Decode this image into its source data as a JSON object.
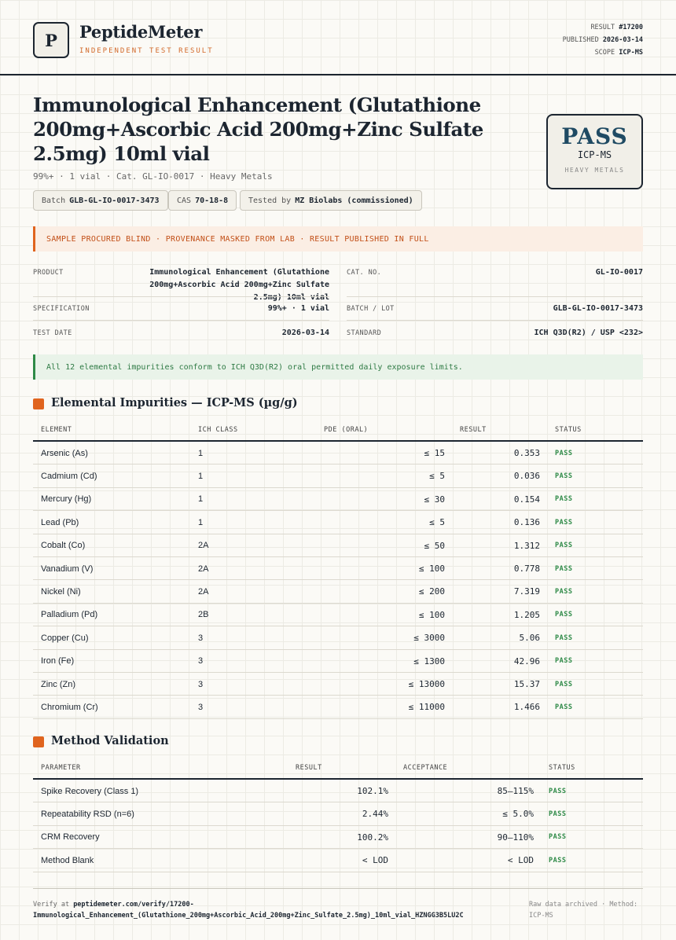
{
  "header": {
    "logo_letter": "P",
    "brand": "PeptideMeter",
    "tagline": "INDEPENDENT TEST RESULT",
    "result_label": "RESULT",
    "result_value": "#17200",
    "published_label": "PUBLISHED",
    "published_value": "2026-03-14",
    "scope_label": "SCOPE",
    "scope_value": "ICP-MS"
  },
  "title": "Immunological Enhancement (Glutathione 200mg+Ascorbic Acid 200mg+Zinc Sulfate 2.5mg) 10ml vial",
  "subtitle": "99%+ · 1 vial · Cat. GL-IO-0017 · Heavy Metals",
  "chips": [
    {
      "label": "Batch",
      "value": "GLB-GL-IO-0017-3473"
    },
    {
      "label": "CAS",
      "value": "70-18-8"
    },
    {
      "label": "Tested by",
      "value": "MZ Biolabs (commissioned)"
    }
  ],
  "stamp": {
    "verdict": "PASS",
    "method": "ICP-MS",
    "category": "HEAVY METALS",
    "color": "#1f4a63"
  },
  "notice": "SAMPLE PROCURED BLIND · PROVENANCE MASKED FROM LAB · RESULT PUBLISHED IN FULL",
  "info": {
    "product_label": "PRODUCT",
    "product_value": "Immunological Enhancement (Glutathione 200mg+Ascorbic Acid 200mg+Zinc Sulfate 2.5mg) 10ml vial",
    "catno_label": "CAT. NO.",
    "catno_value": "GL-IO-0017",
    "spec_label": "SPECIFICATION",
    "spec_value": "99%+ · 1 vial",
    "batch_label": "BATCH / LOT",
    "batch_value": "GLB-GL-IO-0017-3473",
    "date_label": "TEST DATE",
    "date_value": "2026-03-14",
    "standard_label": "STANDARD",
    "standard_value": "ICH Q3D(R2) / USP <232>"
  },
  "conformance": "All 12 elemental impurities conform to ICH Q3D(R2) oral permitted daily exposure limits.",
  "impurities": {
    "heading": "Elemental Impurities — ICP-MS (µg/g)",
    "columns": [
      "ELEMENT",
      "ICH CLASS",
      "PDE (ORAL)",
      "RESULT",
      "STATUS"
    ],
    "rows": [
      {
        "element": "Arsenic (As)",
        "class": "1",
        "pde": "≤ 15",
        "result": "0.353",
        "status": "PASS"
      },
      {
        "element": "Cadmium (Cd)",
        "class": "1",
        "pde": "≤ 5",
        "result": "0.036",
        "status": "PASS"
      },
      {
        "element": "Mercury (Hg)",
        "class": "1",
        "pde": "≤ 30",
        "result": "0.154",
        "status": "PASS"
      },
      {
        "element": "Lead (Pb)",
        "class": "1",
        "pde": "≤ 5",
        "result": "0.136",
        "status": "PASS"
      },
      {
        "element": "Cobalt (Co)",
        "class": "2A",
        "pde": "≤ 50",
        "result": "1.312",
        "status": "PASS"
      },
      {
        "element": "Vanadium (V)",
        "class": "2A",
        "pde": "≤ 100",
        "result": "0.778",
        "status": "PASS"
      },
      {
        "element": "Nickel (Ni)",
        "class": "2A",
        "pde": "≤ 200",
        "result": "7.319",
        "status": "PASS"
      },
      {
        "element": "Palladium (Pd)",
        "class": "2B",
        "pde": "≤ 100",
        "result": "1.205",
        "status": "PASS"
      },
      {
        "element": "Copper (Cu)",
        "class": "3",
        "pde": "≤ 3000",
        "result": "5.06",
        "status": "PASS"
      },
      {
        "element": "Iron (Fe)",
        "class": "3",
        "pde": "≤ 1300",
        "result": "42.96",
        "status": "PASS"
      },
      {
        "element": "Zinc (Zn)",
        "class": "3",
        "pde": "≤ 13000",
        "result": "15.37",
        "status": "PASS"
      },
      {
        "element": "Chromium (Cr)",
        "class": "3",
        "pde": "≤ 11000",
        "result": "1.466",
        "status": "PASS"
      }
    ]
  },
  "validation": {
    "heading": "Method Validation",
    "columns": [
      "PARAMETER",
      "RESULT",
      "ACCEPTANCE",
      "STATUS"
    ],
    "rows": [
      {
        "parameter": "Spike Recovery (Class 1)",
        "result": "102.1%",
        "acceptance": "85–115%",
        "status": "PASS"
      },
      {
        "parameter": "Repeatability RSD (n=6)",
        "result": "2.44%",
        "acceptance": "≤ 5.0%",
        "status": "PASS"
      },
      {
        "parameter": "CRM Recovery",
        "result": "100.2%",
        "acceptance": "90–110%",
        "status": "PASS"
      },
      {
        "parameter": "Method Blank",
        "result": "< LOD",
        "acceptance": "< LOD",
        "status": "PASS"
      }
    ]
  },
  "footer": {
    "verify_prefix": "Verify at",
    "verify_url_1": "peptidemeter.com/verify/17200-",
    "verify_url_2": "Immunological_Enhancement_(Glutathione_200mg+Ascorbic_Acid_200mg+Zinc_Sulfate_2.5mg)_10ml_vial_HZNGG3B5LU2C",
    "archive_note": "Raw data archived · Method: ICP-MS"
  },
  "colors": {
    "accent": "#e0641e",
    "pass_green": "#2e8a47",
    "navy": "#1f4a63"
  }
}
